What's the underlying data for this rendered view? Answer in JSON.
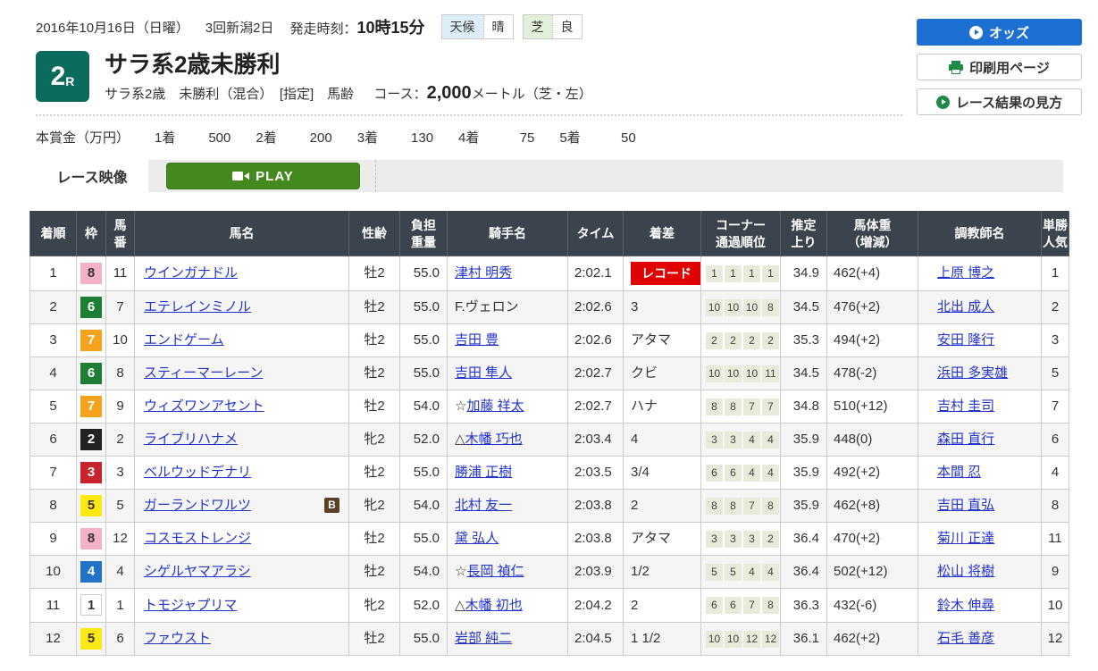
{
  "header": {
    "date": "2016年10月16日（日曜）",
    "meeting": "3回新潟2日",
    "start_label": "発走時刻：",
    "start_time": "10時15分",
    "weather_label": "天候",
    "weather_value": "晴",
    "turf_label": "芝",
    "turf_value": "良"
  },
  "actions": {
    "odds": "オッズ",
    "print": "印刷用ページ",
    "guide": "レース結果の見方"
  },
  "race": {
    "number": "2",
    "number_suffix": "R",
    "title": "サラ系2歳未勝利",
    "conditions": "サラ系2歳　未勝利（混合）　[指定]　馬齢",
    "course_label": "コース：",
    "course_distance": "2,000",
    "course_suffix": "メートル（芝・左）"
  },
  "prize": {
    "label": "本賞金（万円）",
    "items": [
      {
        "place": "1着",
        "amount": "500"
      },
      {
        "place": "2着",
        "amount": "200"
      },
      {
        "place": "3着",
        "amount": "130"
      },
      {
        "place": "4着",
        "amount": "75"
      },
      {
        "place": "5着",
        "amount": "50"
      }
    ]
  },
  "video": {
    "label": "レース映像",
    "play": "PLAY"
  },
  "colors": {
    "accent_blue": "#1e6fd2",
    "brand_teal": "#0b6b5c",
    "play_green": "#44891d",
    "record_red": "#e00000",
    "link_blue": "#2233cc",
    "header_slate": "#3b434c",
    "frames": {
      "1": {
        "bg": "#ffffff",
        "fg": "#333333",
        "border": "#cccccc"
      },
      "2": {
        "bg": "#222222",
        "fg": "#ffffff"
      },
      "3": {
        "bg": "#c9242c",
        "fg": "#ffffff"
      },
      "4": {
        "bg": "#2173c8",
        "fg": "#ffffff"
      },
      "5": {
        "bg": "#ffe812",
        "fg": "#333333"
      },
      "6": {
        "bg": "#1e7e34",
        "fg": "#ffffff"
      },
      "7": {
        "bg": "#f5a21d",
        "fg": "#ffffff"
      },
      "8": {
        "bg": "#f5b1c5",
        "fg": "#333333"
      }
    }
  },
  "table": {
    "columns": [
      "着順",
      "枠",
      "馬\n番",
      "馬名",
      "性齢",
      "負担\n重量",
      "騎手名",
      "タイム",
      "着差",
      "コーナー\n通過順位",
      "推定\n上り",
      "馬体重\n（増減）",
      "調教師名",
      "単勝\n人気"
    ],
    "blinker_label": "B",
    "rows": [
      {
        "pos": "1",
        "frame": "8",
        "no": "11",
        "horse": "ウインガナドル",
        "blinker": false,
        "sex": "牡2",
        "weight": "55.0",
        "mark": "",
        "jockey": "津村 明秀",
        "jockey_link": true,
        "time": "2:02.1",
        "margin": "レコード",
        "record": true,
        "corners": [
          "1",
          "1",
          "1",
          "1"
        ],
        "agari": "34.9",
        "body": "462(+4)",
        "trainer": "上原 博之",
        "fav": "1"
      },
      {
        "pos": "2",
        "frame": "6",
        "no": "7",
        "horse": "エテレインミノル",
        "blinker": false,
        "sex": "牡2",
        "weight": "55.0",
        "mark": "",
        "jockey": "F.ヴェロン",
        "jockey_link": false,
        "time": "2:02.6",
        "margin": "3",
        "record": false,
        "corners": [
          "10",
          "10",
          "10",
          "8"
        ],
        "agari": "34.5",
        "body": "476(+2)",
        "trainer": "北出 成人",
        "fav": "2"
      },
      {
        "pos": "3",
        "frame": "7",
        "no": "10",
        "horse": "エンドゲーム",
        "blinker": false,
        "sex": "牡2",
        "weight": "55.0",
        "mark": "",
        "jockey": "吉田 豊",
        "jockey_link": true,
        "time": "2:02.6",
        "margin": "アタマ",
        "record": false,
        "corners": [
          "2",
          "2",
          "2",
          "2"
        ],
        "agari": "35.3",
        "body": "494(+2)",
        "trainer": "安田 隆行",
        "fav": "3"
      },
      {
        "pos": "4",
        "frame": "6",
        "no": "8",
        "horse": "スティーマーレーン",
        "blinker": false,
        "sex": "牡2",
        "weight": "55.0",
        "mark": "",
        "jockey": "吉田 隼人",
        "jockey_link": true,
        "time": "2:02.7",
        "margin": "クビ",
        "record": false,
        "corners": [
          "10",
          "10",
          "10",
          "11"
        ],
        "agari": "34.5",
        "body": "478(-2)",
        "trainer": "浜田 多実雄",
        "fav": "5"
      },
      {
        "pos": "5",
        "frame": "7",
        "no": "9",
        "horse": "ウィズワンアセント",
        "blinker": false,
        "sex": "牡2",
        "weight": "54.0",
        "mark": "☆",
        "jockey": "加藤 祥太",
        "jockey_link": true,
        "time": "2:02.7",
        "margin": "ハナ",
        "record": false,
        "corners": [
          "8",
          "8",
          "7",
          "7"
        ],
        "agari": "34.8",
        "body": "510(+12)",
        "trainer": "吉村 圭司",
        "fav": "7"
      },
      {
        "pos": "6",
        "frame": "2",
        "no": "2",
        "horse": "ライブリハナメ",
        "blinker": false,
        "sex": "牝2",
        "weight": "52.0",
        "mark": "△",
        "jockey": "木幡 巧也",
        "jockey_link": true,
        "time": "2:03.4",
        "margin": "4",
        "record": false,
        "corners": [
          "3",
          "3",
          "4",
          "4"
        ],
        "agari": "35.9",
        "body": "448(0)",
        "trainer": "森田 直行",
        "fav": "6"
      },
      {
        "pos": "7",
        "frame": "3",
        "no": "3",
        "horse": "ベルウッドデナリ",
        "blinker": false,
        "sex": "牡2",
        "weight": "55.0",
        "mark": "",
        "jockey": "勝浦 正樹",
        "jockey_link": true,
        "time": "2:03.5",
        "margin": "3/4",
        "record": false,
        "corners": [
          "6",
          "6",
          "4",
          "4"
        ],
        "agari": "35.9",
        "body": "492(+2)",
        "trainer": "本間 忍",
        "fav": "4"
      },
      {
        "pos": "8",
        "frame": "5",
        "no": "5",
        "horse": "ガーランドワルツ",
        "blinker": true,
        "sex": "牝2",
        "weight": "54.0",
        "mark": "",
        "jockey": "北村 友一",
        "jockey_link": true,
        "time": "2:03.8",
        "margin": "2",
        "record": false,
        "corners": [
          "8",
          "8",
          "7",
          "8"
        ],
        "agari": "35.9",
        "body": "462(+8)",
        "trainer": "吉田 直弘",
        "fav": "8"
      },
      {
        "pos": "9",
        "frame": "8",
        "no": "12",
        "horse": "コスモストレンジ",
        "blinker": false,
        "sex": "牡2",
        "weight": "55.0",
        "mark": "",
        "jockey": "黛 弘人",
        "jockey_link": true,
        "time": "2:03.8",
        "margin": "アタマ",
        "record": false,
        "corners": [
          "3",
          "3",
          "3",
          "2"
        ],
        "agari": "36.4",
        "body": "470(+2)",
        "trainer": "菊川 正達",
        "fav": "11"
      },
      {
        "pos": "10",
        "frame": "4",
        "no": "4",
        "horse": "シゲルヤマアラシ",
        "blinker": false,
        "sex": "牡2",
        "weight": "54.0",
        "mark": "☆",
        "jockey": "長岡 禎仁",
        "jockey_link": true,
        "time": "2:03.9",
        "margin": "1/2",
        "record": false,
        "corners": [
          "5",
          "5",
          "4",
          "4"
        ],
        "agari": "36.4",
        "body": "502(+12)",
        "trainer": "松山 将樹",
        "fav": "9"
      },
      {
        "pos": "11",
        "frame": "1",
        "no": "1",
        "horse": "トモジャプリマ",
        "blinker": false,
        "sex": "牝2",
        "weight": "52.0",
        "mark": "△",
        "jockey": "木幡 初也",
        "jockey_link": true,
        "time": "2:04.2",
        "margin": "2",
        "record": false,
        "corners": [
          "6",
          "6",
          "7",
          "8"
        ],
        "agari": "36.3",
        "body": "432(-6)",
        "trainer": "鈴木 伸尋",
        "fav": "10"
      },
      {
        "pos": "12",
        "frame": "5",
        "no": "6",
        "horse": "ファウスト",
        "blinker": false,
        "sex": "牡2",
        "weight": "55.0",
        "mark": "",
        "jockey": "岩部 純二",
        "jockey_link": true,
        "time": "2:04.5",
        "margin": "1 1/2",
        "record": false,
        "corners": [
          "10",
          "10",
          "12",
          "12"
        ],
        "agari": "36.1",
        "body": "462(+2)",
        "trainer": "石毛 善彦",
        "fav": "12"
      }
    ]
  }
}
